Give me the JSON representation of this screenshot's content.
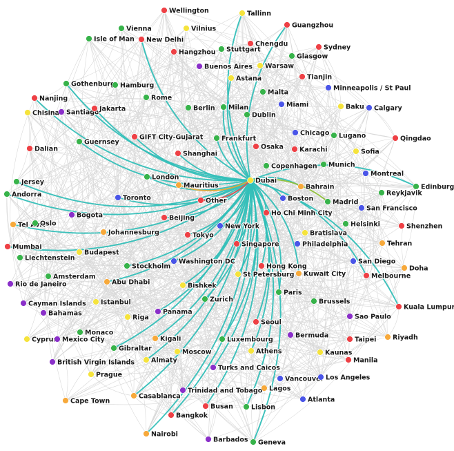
{
  "graph": {
    "hub": "Dubai",
    "colors": {
      "green": "#37b34a",
      "red": "#ee4045",
      "yellow": "#f5e33c",
      "orange": "#f7a93b",
      "blue": "#4a55e8",
      "purple": "#8a2fc9",
      "hub_edge": "#33bfb8",
      "background_edge": "#b9b9b9"
    },
    "nodes": [
      {
        "label": "Wellington",
        "color": "red"
      },
      {
        "label": "Tallinn",
        "color": "yellow"
      },
      {
        "label": "Vienna",
        "color": "green"
      },
      {
        "label": "Vilnius",
        "color": "yellow"
      },
      {
        "label": "Guangzhou",
        "color": "red"
      },
      {
        "label": "Isle of Man",
        "color": "green"
      },
      {
        "label": "New Delhi",
        "color": "red"
      },
      {
        "label": "Chengdu",
        "color": "red"
      },
      {
        "label": "Stuttgart",
        "color": "green"
      },
      {
        "label": "Sydney",
        "color": "red"
      },
      {
        "label": "Hangzhou",
        "color": "red"
      },
      {
        "label": "Glasgow",
        "color": "green"
      },
      {
        "label": "Buenos Aires",
        "color": "purple"
      },
      {
        "label": "Warsaw",
        "color": "yellow"
      },
      {
        "label": "Astana",
        "color": "yellow"
      },
      {
        "label": "Tianjin",
        "color": "red"
      },
      {
        "label": "Gothenburg",
        "color": "green"
      },
      {
        "label": "Hamburg",
        "color": "green"
      },
      {
        "label": "Minneapolis / St Paul",
        "color": "blue"
      },
      {
        "label": "Malta",
        "color": "green"
      },
      {
        "label": "Nanjing",
        "color": "red"
      },
      {
        "label": "Rome",
        "color": "green"
      },
      {
        "label": "Chisinau",
        "color": "yellow"
      },
      {
        "label": "Santiago",
        "color": "purple"
      },
      {
        "label": "Jakarta",
        "color": "red"
      },
      {
        "label": "Berlin",
        "color": "green"
      },
      {
        "label": "Milan",
        "color": "green"
      },
      {
        "label": "Miami",
        "color": "blue"
      },
      {
        "label": "Baku",
        "color": "yellow"
      },
      {
        "label": "Calgary",
        "color": "blue"
      },
      {
        "label": "Dublin",
        "color": "green"
      },
      {
        "label": "Chicago",
        "color": "blue"
      },
      {
        "label": "GIFT City-Gujarat",
        "color": "red"
      },
      {
        "label": "Guernsey",
        "color": "green"
      },
      {
        "label": "Frankfurt",
        "color": "green"
      },
      {
        "label": "Lugano",
        "color": "green"
      },
      {
        "label": "Qingdao",
        "color": "red"
      },
      {
        "label": "Osaka",
        "color": "red"
      },
      {
        "label": "Karachi",
        "color": "red"
      },
      {
        "label": "Dalian",
        "color": "red"
      },
      {
        "label": "Shanghai",
        "color": "red"
      },
      {
        "label": "Sofia",
        "color": "yellow"
      },
      {
        "label": "Copenhagen",
        "color": "green"
      },
      {
        "label": "Munich",
        "color": "green"
      },
      {
        "label": "London",
        "color": "green"
      },
      {
        "label": "Montreal",
        "color": "blue"
      },
      {
        "label": "Jersey",
        "color": "green"
      },
      {
        "label": "Mauritius",
        "color": "orange"
      },
      {
        "label": "Dubai",
        "color": "yellow"
      },
      {
        "label": "Bahrain",
        "color": "orange"
      },
      {
        "label": "Edinburgh",
        "color": "green"
      },
      {
        "label": "Reykjavik",
        "color": "green"
      },
      {
        "label": "Andorra",
        "color": "green"
      },
      {
        "label": "Toronto",
        "color": "blue"
      },
      {
        "label": "Other",
        "color": "red"
      },
      {
        "label": "Boston",
        "color": "blue"
      },
      {
        "label": "Madrid",
        "color": "green"
      },
      {
        "label": "San Francisco",
        "color": "blue"
      },
      {
        "label": "Tel Aviv",
        "color": "orange"
      },
      {
        "label": "Oslo",
        "color": "green"
      },
      {
        "label": "Bogota",
        "color": "purple"
      },
      {
        "label": "Beijing",
        "color": "red"
      },
      {
        "label": "Ho Chi Minh City",
        "color": "red"
      },
      {
        "label": "Helsinki",
        "color": "green"
      },
      {
        "label": "Shenzhen",
        "color": "red"
      },
      {
        "label": "New York",
        "color": "blue"
      },
      {
        "label": "Johannesburg",
        "color": "orange"
      },
      {
        "label": "Bratislava",
        "color": "yellow"
      },
      {
        "label": "Tokyo",
        "color": "red"
      },
      {
        "label": "Mumbai",
        "color": "red"
      },
      {
        "label": "Singapore",
        "color": "red"
      },
      {
        "label": "Philadelphia",
        "color": "blue"
      },
      {
        "label": "Tehran",
        "color": "orange"
      },
      {
        "label": "Budapest",
        "color": "yellow"
      },
      {
        "label": "Liechtenstein",
        "color": "green"
      },
      {
        "label": "Washington DC",
        "color": "blue"
      },
      {
        "label": "San Diego",
        "color": "blue"
      },
      {
        "label": "Stockholm",
        "color": "green"
      },
      {
        "label": "Hong Kong",
        "color": "red"
      },
      {
        "label": "Doha",
        "color": "orange"
      },
      {
        "label": "Amsterdam",
        "color": "green"
      },
      {
        "label": "Abu Dhabi",
        "color": "orange"
      },
      {
        "label": "St Petersburg",
        "color": "yellow"
      },
      {
        "label": "Kuwait City",
        "color": "orange"
      },
      {
        "label": "Melbourne",
        "color": "red"
      },
      {
        "label": "Rio de Janeiro",
        "color": "purple"
      },
      {
        "label": "Bishkek",
        "color": "yellow"
      },
      {
        "label": "Paris",
        "color": "green"
      },
      {
        "label": "Cayman Islands",
        "color": "purple"
      },
      {
        "label": "Istanbul",
        "color": "yellow"
      },
      {
        "label": "Zurich",
        "color": "green"
      },
      {
        "label": "Brussels",
        "color": "green"
      },
      {
        "label": "Kuala Lumpur",
        "color": "red"
      },
      {
        "label": "Bahamas",
        "color": "purple"
      },
      {
        "label": "Panama",
        "color": "purple"
      },
      {
        "label": "Riga",
        "color": "yellow"
      },
      {
        "label": "Sao Paulo",
        "color": "purple"
      },
      {
        "label": "Seoul",
        "color": "red"
      },
      {
        "label": "Monaco",
        "color": "green"
      },
      {
        "label": "Riyadh",
        "color": "orange"
      },
      {
        "label": "Cyprus",
        "color": "yellow"
      },
      {
        "label": "Mexico City",
        "color": "purple"
      },
      {
        "label": "Kigali",
        "color": "orange"
      },
      {
        "label": "Bermuda",
        "color": "purple"
      },
      {
        "label": "Taipei",
        "color": "red"
      },
      {
        "label": "Luxembourg",
        "color": "green"
      },
      {
        "label": "Gibraltar",
        "color": "green"
      },
      {
        "label": "Athens",
        "color": "yellow"
      },
      {
        "label": "Moscow",
        "color": "yellow"
      },
      {
        "label": "Kaunas",
        "color": "yellow"
      },
      {
        "label": "Manila",
        "color": "red"
      },
      {
        "label": "British Virgin Islands",
        "color": "purple"
      },
      {
        "label": "Almaty",
        "color": "yellow"
      },
      {
        "label": "Turks and Caicos",
        "color": "purple"
      },
      {
        "label": "Prague",
        "color": "yellow"
      },
      {
        "label": "Vancouver",
        "color": "blue"
      },
      {
        "label": "Los Angeles",
        "color": "blue"
      },
      {
        "label": "Trinidad and Tobago",
        "color": "purple"
      },
      {
        "label": "Lagos",
        "color": "orange"
      },
      {
        "label": "Cape Town",
        "color": "orange"
      },
      {
        "label": "Casablanca",
        "color": "orange"
      },
      {
        "label": "Atlanta",
        "color": "blue"
      },
      {
        "label": "Bangkok",
        "color": "red"
      },
      {
        "label": "Busan",
        "color": "red"
      },
      {
        "label": "Lisbon",
        "color": "green"
      },
      {
        "label": "Nairobi",
        "color": "orange"
      },
      {
        "label": "Barbados",
        "color": "purple"
      },
      {
        "label": "Geneva",
        "color": "green"
      }
    ]
  }
}
